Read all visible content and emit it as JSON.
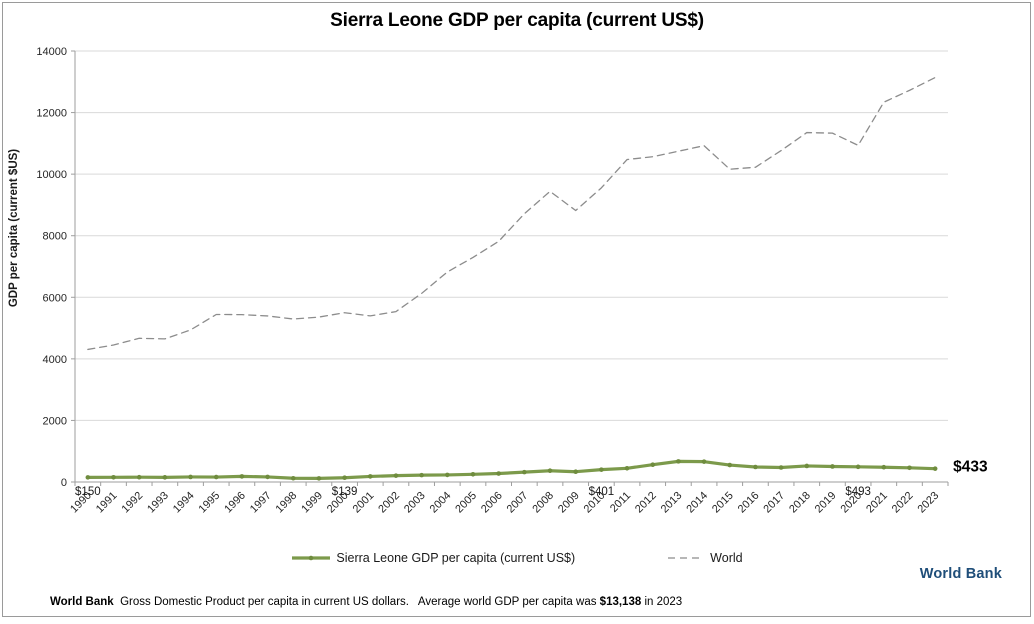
{
  "chart": {
    "title": "Sierra Leone GDP per capita (current US$)"
  },
  "chart_data": {
    "type": "line",
    "title": "Sierra Leone GDP per capita (current US$)",
    "xlabel": "",
    "ylabel": "GDP per capita (current $US)",
    "ylim": [
      0,
      14000
    ],
    "ytick_interval": 2000,
    "grid": true,
    "legend_position": "bottom",
    "categories": [
      "1990",
      "1991",
      "1992",
      "1993",
      "1994",
      "1995",
      "1996",
      "1997",
      "1998",
      "1999",
      "2000",
      "2001",
      "2002",
      "2003",
      "2004",
      "2005",
      "2006",
      "2007",
      "2008",
      "2009",
      "2010",
      "2011",
      "2012",
      "2013",
      "2014",
      "2015",
      "2016",
      "2017",
      "2018",
      "2019",
      "2020",
      "2021",
      "2022",
      "2023"
    ],
    "series": [
      {
        "name": "World",
        "style": "dashed",
        "color": "#8c8c8c",
        "width": 1.3,
        "dash": "7 5",
        "marker": false,
        "values": [
          4306,
          4449,
          4668,
          4648,
          4940,
          5441,
          5437,
          5394,
          5294,
          5357,
          5499,
          5396,
          5535,
          6126,
          6822,
          7294,
          7816,
          8714,
          9441,
          8818,
          9554,
          10474,
          10566,
          10745,
          10924,
          10160,
          10223,
          10766,
          11350,
          11332,
          10935,
          12336,
          12721,
          13138
        ]
      },
      {
        "name": "Sierra Leone GDP per capita (current US$)",
        "style": "solid",
        "color": "#7c9a4b",
        "width": 3.2,
        "marker": true,
        "marker_color": "#6f8c3e",
        "values": [
          150,
          153,
          156,
          151,
          164,
          161,
          182,
          165,
          122,
          118,
          139,
          181,
          206,
          223,
          230,
          250,
          275,
          321,
          366,
          334,
          401,
          445,
          562,
          670,
          661,
          551,
          487,
          471,
          521,
          504,
          493,
          480,
          461,
          433
        ]
      }
    ],
    "annotations": [
      {
        "year": "1990",
        "label": "$150",
        "placement": "below-axis"
      },
      {
        "year": "2000",
        "label": "$139",
        "placement": "below-axis"
      },
      {
        "year": "2010",
        "label": "$401",
        "placement": "below-axis"
      },
      {
        "year": "2020",
        "label": "$493",
        "placement": "below-axis"
      },
      {
        "year": "2023",
        "label": "$433",
        "placement": "line-end"
      }
    ],
    "colors": {
      "grid": "#d9d9d9",
      "axis": "#9e9e9e"
    }
  },
  "legend": {
    "items": [
      {
        "label": "Sierra Leone GDP per capita (current US$)"
      },
      {
        "label": "World"
      }
    ]
  },
  "footer": {
    "source": "World Bank",
    "description": "  Gross Domestic Product per capita in current US dollars.   Average world GDP per capita was ",
    "highlight_value": "$13,138",
    "suffix": " in 2023"
  },
  "branding": {
    "logo_text": "World Bank",
    "logo_color": "#1f4e79"
  }
}
